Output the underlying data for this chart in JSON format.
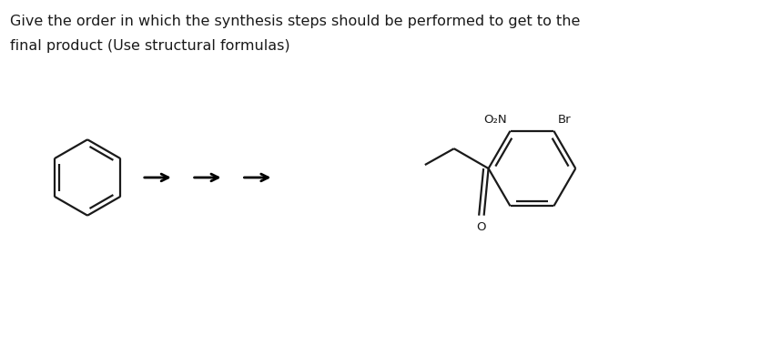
{
  "title_line1": "Give the order in which the synthesis steps should be performed to get to the",
  "title_line2": "final product (Use structural formulas)",
  "title_fontsize": 11.5,
  "bg_color": "#ffffff",
  "line_color": "#1a1a1a",
  "line_width": 1.6,
  "arrow_color": "#000000",
  "label_O2N": "O₂N",
  "label_Br": "Br",
  "label_O": "O"
}
